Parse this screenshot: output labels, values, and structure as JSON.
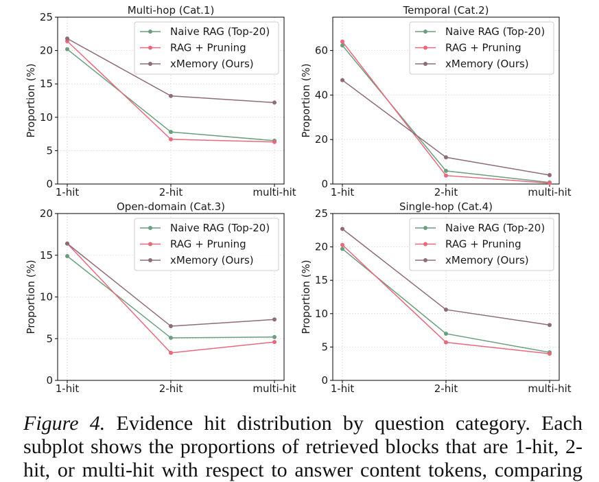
{
  "chart_data": [
    {
      "type": "line",
      "title": "Multi-hop (Cat.1)",
      "ylabel": "Proportion (%)",
      "xlabel": "",
      "categories": [
        "1-hit",
        "2-hit",
        "multi-hit"
      ],
      "ylim": [
        0,
        25
      ],
      "yticks": [
        0,
        5,
        10,
        15,
        20,
        25
      ],
      "grid": true,
      "legend_position": "top-right",
      "series": [
        {
          "name": "Naive RAG (Top-20)",
          "color": "#6a9e7d",
          "values": [
            20.2,
            7.8,
            6.5
          ]
        },
        {
          "name": "RAG + Pruning",
          "color": "#e8687c",
          "values": [
            21.4,
            6.7,
            6.3
          ]
        },
        {
          "name": "xMemory (Ours)",
          "color": "#8e6b77",
          "values": [
            21.8,
            13.2,
            12.2
          ]
        }
      ]
    },
    {
      "type": "line",
      "title": "Temporal (Cat.2)",
      "ylabel": "Proportion (%)",
      "xlabel": "",
      "categories": [
        "1-hit",
        "2-hit",
        "multi-hit"
      ],
      "ylim": [
        0,
        75
      ],
      "yticks": [
        0,
        20,
        40,
        60
      ],
      "grid": true,
      "legend_position": "top-right",
      "series": [
        {
          "name": "Naive RAG (Top-20)",
          "color": "#6a9e7d",
          "values": [
            62.3,
            5.9,
            0.7
          ]
        },
        {
          "name": "RAG + Pruning",
          "color": "#e8687c",
          "values": [
            64.0,
            3.8,
            0.4
          ]
        },
        {
          "name": "xMemory (Ours)",
          "color": "#8e6b77",
          "values": [
            46.7,
            12.0,
            4.0
          ]
        }
      ]
    },
    {
      "type": "line",
      "title": "Open-domain (Cat.3)",
      "ylabel": "Proportion (%)",
      "xlabel": "",
      "categories": [
        "1-hit",
        "2-hit",
        "multi-hit"
      ],
      "ylim": [
        0,
        20
      ],
      "yticks": [
        0,
        5,
        10,
        15,
        20
      ],
      "grid": true,
      "legend_position": "top-right",
      "series": [
        {
          "name": "Naive RAG (Top-20)",
          "color": "#6a9e7d",
          "values": [
            14.9,
            5.1,
            5.2
          ]
        },
        {
          "name": "RAG + Pruning",
          "color": "#e8687c",
          "values": [
            16.4,
            3.3,
            4.6
          ]
        },
        {
          "name": "xMemory (Ours)",
          "color": "#8e6b77",
          "values": [
            16.4,
            6.5,
            7.3
          ]
        }
      ]
    },
    {
      "type": "line",
      "title": "Single-hop (Cat.4)",
      "ylabel": "Proportion (%)",
      "xlabel": "",
      "categories": [
        "1-hit",
        "2-hit",
        "multi-hit"
      ],
      "ylim": [
        0,
        25
      ],
      "yticks": [
        0,
        5,
        10,
        15,
        20,
        25
      ],
      "grid": true,
      "legend_position": "top-right",
      "series": [
        {
          "name": "Naive RAG (Top-20)",
          "color": "#6a9e7d",
          "values": [
            19.7,
            7.0,
            4.2
          ]
        },
        {
          "name": "RAG + Pruning",
          "color": "#e8687c",
          "values": [
            20.3,
            5.7,
            4.0
          ]
        },
        {
          "name": "xMemory (Ours)",
          "color": "#8e6b77",
          "values": [
            22.7,
            10.6,
            8.3
          ]
        }
      ]
    }
  ],
  "caption": {
    "label": "Figure 4.",
    "text": "Evidence hit distribution by question category. Each subplot shows the proportions of retrieved blocks that are 1-hit, 2-hit, or multi-hit with respect to answer content tokens, comparing"
  }
}
